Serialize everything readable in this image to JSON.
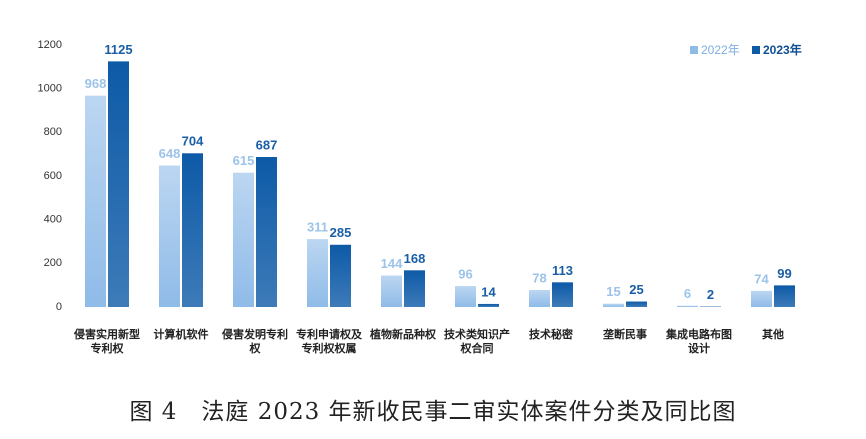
{
  "chart_data": {
    "type": "bar",
    "title": "图 4　法庭 2023 年新收民事二审实体案件分类及同比图",
    "categories": [
      "侵害实用新型专利权",
      "计算机软件",
      "侵害发明专利权",
      "专利申请权及专利权权属",
      "植物新品种权",
      "技术类知识产权合同",
      "技术秘密",
      "垄断民事",
      "集成电路布图设计",
      "其他"
    ],
    "series": [
      {
        "name": "2022年",
        "color": "#8fbbe8",
        "values": [
          968,
          648,
          615,
          311,
          144,
          96,
          78,
          15,
          6,
          74
        ]
      },
      {
        "name": "2023年",
        "color": "#0d5aa7",
        "values": [
          1125,
          704,
          687,
          285,
          168,
          14,
          113,
          25,
          2,
          99
        ]
      }
    ],
    "ylim": [
      0,
      1200
    ],
    "yticks": [
      0,
      200,
      400,
      600,
      800,
      1000,
      1200
    ],
    "grid": false,
    "legend": "top-right"
  }
}
